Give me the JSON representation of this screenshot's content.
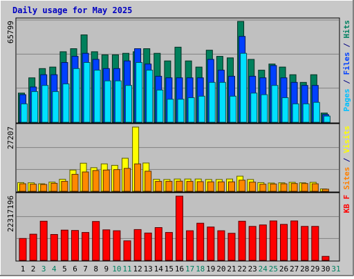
{
  "chart_data": {
    "type": "bar",
    "title": "Daily usage for May 2025",
    "categories": [
      "1",
      "2",
      "3",
      "4",
      "5",
      "6",
      "7",
      "8",
      "9",
      "10",
      "11",
      "12",
      "13",
      "14",
      "15",
      "16",
      "17",
      "18",
      "19",
      "20",
      "21",
      "22",
      "23",
      "24",
      "25",
      "26",
      "27",
      "28",
      "29",
      "30",
      "31"
    ],
    "weekend_days": [
      "3",
      "4",
      "10",
      "11",
      "17",
      "18",
      "24",
      "25",
      "31"
    ],
    "panels": [
      {
        "id": "hits-files-pages",
        "max_label": "65799",
        "ymax": 65799,
        "right_label": [
          {
            "text": "Pages",
            "color": "#00c0ff"
          },
          {
            "text": " / ",
            "color": "#000080"
          },
          {
            "text": "Files",
            "color": "#0040ff"
          },
          {
            "text": " / ",
            "color": "#000080"
          },
          {
            "text": "Hits",
            "color": "#008060"
          }
        ],
        "series": [
          {
            "name": "Hits",
            "color": "#00805c",
            "values": [
              19000,
              29000,
              35000,
              36000,
              46000,
              48000,
              57000,
              46000,
              44000,
              44000,
              45000,
              46000,
              48000,
              45000,
              40000,
              49000,
              40000,
              36000,
              47000,
              43000,
              42000,
              65799,
              41000,
              34000,
              38000,
              36000,
              31000,
              26000,
              31000,
              6000,
              0
            ]
          },
          {
            "name": "Files",
            "color": "#0040ff",
            "values": [
              18000,
              23000,
              31000,
              31000,
              39000,
              43000,
              45000,
              41000,
              35000,
              35000,
              40000,
              48000,
              38000,
              30000,
              29000,
              29000,
              29000,
              29000,
              41000,
              34000,
              30000,
              56000,
              30000,
              29000,
              37000,
              29000,
              26000,
              24000,
              24000,
              5000,
              0
            ]
          },
          {
            "name": "Pages",
            "color": "#00e0ff",
            "values": [
              12000,
              20000,
              24000,
              20000,
              25000,
              35000,
              39000,
              34000,
              27000,
              27000,
              24000,
              39000,
              34000,
              21000,
              15000,
              15000,
              16000,
              17000,
              26000,
              26000,
              17000,
              45000,
              19000,
              18000,
              24000,
              16000,
              12000,
              12000,
              13000,
              4000,
              0
            ]
          }
        ]
      },
      {
        "id": "visits-sites",
        "max_label": "27207",
        "ymax": 27207,
        "right_label": [
          {
            "text": "Sites",
            "color": "#ff8000"
          },
          {
            "text": " / ",
            "color": "#000080"
          },
          {
            "text": "Visits",
            "color": "#ffff00"
          }
        ],
        "series": [
          {
            "name": "Visits",
            "color": "#ffff00",
            "values": [
              3700,
              3600,
              3200,
              3900,
              5100,
              9000,
              11900,
              10000,
              11600,
              11000,
              14000,
              27207,
              12000,
              5100,
              5000,
              5200,
              5200,
              5200,
              5000,
              5000,
              5200,
              6400,
              5000,
              3700,
              3500,
              3600,
              3800,
              3600,
              3800,
              1000,
              0
            ]
          },
          {
            "name": "Sites",
            "color": "#ff8800",
            "values": [
              3200,
              3000,
              2900,
              3400,
              4200,
              7200,
              8200,
              8800,
              9000,
              9200,
              9700,
              11600,
              8500,
              4200,
              4200,
              4300,
              4200,
              4100,
              4000,
              4000,
              4000,
              4700,
              3900,
              3000,
              3100,
              3200,
              3300,
              3300,
              3200,
              900,
              0
            ]
          }
        ]
      },
      {
        "id": "kbytes",
        "max_label": "22317196",
        "ymax": 22317196,
        "right_label": [
          {
            "text": "KB F",
            "color": "#ff0000"
          }
        ],
        "series": [
          {
            "name": "KB F",
            "color": "#ff0000",
            "values": [
              7600000,
              9100000,
              13600000,
              9000000,
              10500000,
              10400000,
              9700000,
              13500000,
              10600000,
              10300000,
              6800000,
              10700000,
              9500000,
              11400000,
              9700000,
              22317196,
              10300000,
              12900000,
              11600000,
              10300000,
              9400000,
              13600000,
              11800000,
              12300000,
              13700000,
              12500000,
              13700000,
              11800000,
              11800000,
              1400000,
              0
            ]
          }
        ]
      }
    ]
  }
}
